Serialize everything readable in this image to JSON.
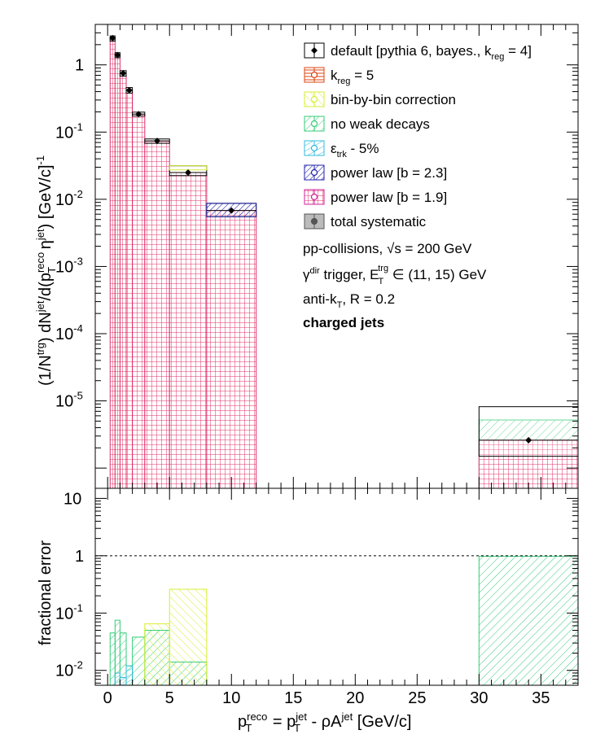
{
  "chart_data": [
    {
      "type": "bar",
      "panel": "top",
      "yscale": "log",
      "ylim": [
        5e-07,
        4
      ],
      "xlim": [
        -1,
        38
      ],
      "ylabel": "(1/Ntrg) dNjet/d(pTreco ηjet) [GeV/c]-1",
      "y_ticks": [
        "1",
        "10-1",
        "10-2",
        "10-3",
        "10-4",
        "10-5"
      ],
      "bins": [
        {
          "x": [
            0.2,
            0.6
          ],
          "value": 2.5
        },
        {
          "x": [
            0.6,
            1.0
          ],
          "value": 1.4
        },
        {
          "x": [
            1.0,
            1.5
          ],
          "value": 0.75
        },
        {
          "x": [
            1.5,
            2.0
          ],
          "value": 0.42
        },
        {
          "x": [
            2.0,
            3.0
          ],
          "value": 0.185
        },
        {
          "x": [
            3.0,
            5.0
          ],
          "value": 0.074
        },
        {
          "x": [
            5.0,
            8.0
          ],
          "value": 0.025
        },
        {
          "x": [
            8.0,
            12.0
          ],
          "value": 0.0068
        },
        {
          "x": [
            30.0,
            38.0
          ],
          "value": 2.6e-06
        }
      ],
      "syst_band": [
        {
          "x": [
            0.2,
            0.6
          ],
          "low": 2.25,
          "high": 2.7
        },
        {
          "x": [
            0.6,
            1.0
          ],
          "low": 1.28,
          "high": 1.52
        },
        {
          "x": [
            1.0,
            1.5
          ],
          "low": 0.68,
          "high": 0.82
        },
        {
          "x": [
            1.5,
            2.0
          ],
          "low": 0.38,
          "high": 0.46
        },
        {
          "x": [
            2.0,
            3.0
          ],
          "low": 0.173,
          "high": 0.198
        },
        {
          "x": [
            3.0,
            5.0
          ],
          "low": 0.068,
          "high": 0.079
        },
        {
          "x": [
            5.0,
            8.0
          ],
          "low": 0.0225,
          "high": 0.0315
        },
        {
          "x": [
            8.0,
            12.0
          ],
          "low": 0.0055,
          "high": 0.0087
        },
        {
          "x": [
            30.0,
            38.0
          ],
          "low": 1.5e-06,
          "high": 8.2e-06
        }
      ],
      "variation_tops": {
        "no_weak_decays_last_bin": 5.2e-06
      }
    },
    {
      "type": "bar",
      "panel": "bottom",
      "yscale": "log",
      "ylim": [
        0.0055,
        15
      ],
      "xlim": [
        -1,
        38
      ],
      "xlabel": "pTreco = pTjet - ρAjet [GeV/c]",
      "ylabel": "fractional error",
      "y_ticks": [
        "10",
        "1",
        "10-1",
        "10-2"
      ],
      "x_ticks": [
        "0",
        "5",
        "10",
        "15",
        "20",
        "25",
        "30",
        "35"
      ],
      "reference_line": 1,
      "series": [
        {
          "name": "no weak decays",
          "color": "#33cc77",
          "bins": [
            {
              "x": [
                0.2,
                0.6
              ],
              "value": 0.045
            },
            {
              "x": [
                0.6,
                1.0
              ],
              "value": 0.075
            },
            {
              "x": [
                1.0,
                1.5
              ],
              "value": 0.045
            },
            {
              "x": [
                1.5,
                2.0
              ],
              "value": 0.012
            },
            {
              "x": [
                2.0,
                3.0
              ],
              "value": 0.038
            },
            {
              "x": [
                3.0,
                5.0
              ],
              "value": 0.05
            },
            {
              "x": [
                5.0,
                8.0
              ],
              "value": 0.014
            },
            {
              "x": [
                30.0,
                38.0
              ],
              "value": 0.98
            }
          ]
        },
        {
          "name": "bin-by-bin correction",
          "color": "#d9ee33",
          "bins": [
            {
              "x": [
                3.0,
                5.0
              ],
              "value": 0.065
            },
            {
              "x": [
                5.0,
                8.0
              ],
              "value": 0.26
            }
          ]
        },
        {
          "name": "ε_trk - 5%",
          "color": "#33bbdd",
          "bins": [
            {
              "x": [
                0.6,
                1.0
              ],
              "value": 0.009
            },
            {
              "x": [
                1.0,
                1.5
              ],
              "value": 0.0075
            },
            {
              "x": [
                1.5,
                2.0
              ],
              "value": 0.012
            }
          ]
        }
      ]
    }
  ],
  "legend": [
    {
      "id": "default",
      "label": "default [pythia 6, bayes., k",
      "sub": "reg",
      "suffix": " = 4]",
      "color": "#000000"
    },
    {
      "id": "kreg5",
      "label": "k",
      "sub": "reg",
      "suffix": " = 5",
      "color": "#dd4411"
    },
    {
      "id": "binbybin",
      "label": "bin-by-bin correction",
      "color": "#d9ee33"
    },
    {
      "id": "noweak",
      "label": "no weak decays",
      "color": "#33cc77"
    },
    {
      "id": "etrk",
      "label": "ε",
      "sub": "trk",
      "suffix": " - 5%",
      "color": "#33bbdd"
    },
    {
      "id": "pl23",
      "label": "power law [b = 2.3]",
      "color": "#2222aa"
    },
    {
      "id": "pl19",
      "label": "power law [b = 1.9]",
      "color": "#cc2299"
    },
    {
      "id": "total",
      "label": "total systematic",
      "color": "#555555"
    }
  ],
  "notes": {
    "line1": "pp-collisions, √s = 200 GeV",
    "line2_pre": "γ",
    "line2_sup": "dir",
    "line2_mid": " trigger, E",
    "line2_sub": "T",
    "line2_sup2": "trg",
    "line2_post": " ∈ (11, 15) GeV",
    "line3_pre": "anti-k",
    "line3_sub": "T",
    "line3_post": ", R = 0.2",
    "line4": "charged jets"
  },
  "axis_text": {
    "top_ylabel_a": "(1/N",
    "top_ylabel_b": "trg",
    "top_ylabel_c": ") dN",
    "top_ylabel_d": "jet",
    "top_ylabel_e": "/d(p",
    "top_ylabel_f": "reco",
    "top_ylabel_g": "T",
    "top_ylabel_h": " η",
    "top_ylabel_i": "jet",
    "top_ylabel_j": ") [GeV/c]",
    "top_ylabel_k": "-1",
    "bottom_ylabel": "fractional error",
    "xlabel_a": "p",
    "xlabel_b": "reco",
    "xlabel_c": "T",
    "xlabel_d": " = p",
    "xlabel_e": "jet",
    "xlabel_f": "T",
    "xlabel_g": " - ρA",
    "xlabel_h": "jet",
    "xlabel_i": " [GeV/c]"
  }
}
